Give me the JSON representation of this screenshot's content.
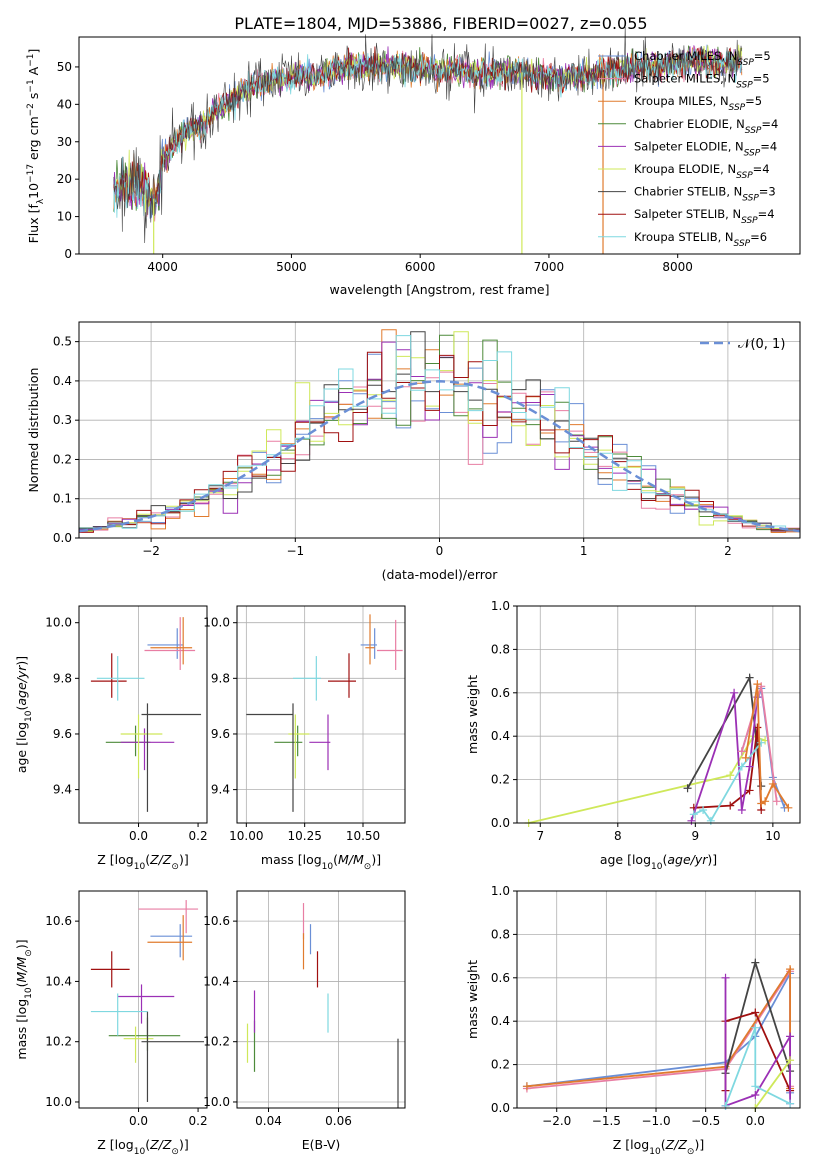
{
  "title": "PLATE=1804, MJD=53886, FIBERID=0027, z=0.055",
  "colors": {
    "chabrier_miles": "#6a8fd6",
    "salpeter_miles": "#e87ea3",
    "kroupa_miles": "#e07b2e",
    "chabrier_elodie": "#4d8a3a",
    "salpeter_elodie": "#9b30b5",
    "kroupa_elodie": "#cfe85a",
    "chabrier_stelib": "#444444",
    "salpeter_stelib": "#a01010",
    "kroupa_stelib": "#7fd8e0",
    "normal_curve": "#6a8fd6"
  },
  "chart_data": [
    {
      "id": "spectrum",
      "type": "line",
      "xlabel": "wavelength [Angstrom, rest frame]",
      "ylabel": "Flux [f_λ10^-17 erg cm^-2 s^-1 A^-1]",
      "xlim": [
        3350,
        8950
      ],
      "ylim": [
        0,
        58
      ],
      "xticks": [
        "4000",
        "5000",
        "6000",
        "7000",
        "8000"
      ],
      "yticks": [
        "0",
        "10",
        "20",
        "30",
        "40",
        "50"
      ],
      "legend_position": "top-right",
      "legend": [
        "Chabrier MILES, N_SSP=5",
        "Salpeter MILES, N_SSP=5",
        "Kroupa MILES, N_SSP=5",
        "Chabrier ELODIE, N_SSP=4",
        "Salpeter ELODIE, N_SSP=4",
        "Kroupa ELODIE, N_SSP=4",
        "Chabrier STELIB, N_SSP=3",
        "Salpeter STELIB, N_SSP=4",
        "Kroupa STELIB, N_SSP=6"
      ],
      "continuum": {
        "x": [
          3600,
          3700,
          3800,
          3900,
          3950,
          4000,
          4100,
          4200,
          4300,
          4400,
          4500,
          4600,
          4700,
          4800,
          4900,
          5000,
          5100,
          5200,
          5300,
          5500,
          5700,
          5900,
          6100,
          6300,
          6500,
          6700,
          6900,
          7100,
          7300,
          7500,
          7700,
          7900,
          8100,
          8300,
          8500
        ],
        "y": [
          17,
          19,
          18,
          16,
          14,
          25,
          30,
          33,
          34,
          38,
          40,
          43,
          45,
          46,
          47,
          47,
          48,
          47,
          49,
          50,
          50,
          50,
          49,
          49,
          48,
          49,
          48,
          47,
          48,
          49,
          50,
          50,
          52,
          51,
          51
        ]
      },
      "dips": [
        {
          "x": 3930,
          "y": 0,
          "series": "Kroupa ELODIE"
        },
        {
          "x": 6790,
          "y": 0,
          "series": "Kroupa ELODIE"
        },
        {
          "x": 7420,
          "y": 0,
          "series": "Kroupa MILES"
        }
      ]
    },
    {
      "id": "residuals",
      "type": "histogram",
      "xlabel": "(data-model)/error",
      "ylabel": "Normed distribution",
      "xlim": [
        -2.5,
        2.5
      ],
      "ylim": [
        0,
        0.55
      ],
      "xticks": [
        "−2",
        "−1",
        "0",
        "1",
        "2"
      ],
      "yticks": [
        "0.0",
        "0.1",
        "0.2",
        "0.3",
        "0.4",
        "0.5"
      ],
      "grid": true,
      "legend_position": "top-right",
      "legend": [
        "𝒩(0, 1)"
      ],
      "bin_width": 0.1,
      "normal_curve": {
        "mu": 0,
        "sigma": 1
      }
    },
    {
      "id": "age_vs_Z",
      "type": "errorbar",
      "xlabel": "Z [log10(Z/Z⊙)]",
      "ylabel": "age  [log10(age/yr)]",
      "xlim": [
        -0.2,
        0.23
      ],
      "ylim": [
        9.28,
        10.06
      ],
      "xticks": [
        "0.0",
        "0.2"
      ],
      "yticks": [
        "9.4",
        "9.6",
        "9.8",
        "10.0"
      ],
      "points": [
        {
          "series": "Chabrier MILES",
          "x": 0.13,
          "y": 9.92,
          "xerr": [
            0.1,
            0.02
          ],
          "yerr": [
            0.05,
            0.06
          ]
        },
        {
          "series": "Salpeter MILES",
          "x": 0.14,
          "y": 9.9,
          "xerr": [
            0.12,
            0.05
          ],
          "yerr": [
            0.07,
            0.12
          ]
        },
        {
          "series": "Kroupa MILES",
          "x": 0.15,
          "y": 9.91,
          "xerr": [
            0.11,
            0.03
          ],
          "yerr": [
            0.06,
            0.11
          ]
        },
        {
          "series": "Chabrier ELODIE",
          "x": -0.01,
          "y": 9.57,
          "xerr": [
            0.1,
            0.05
          ],
          "yerr": [
            0.05,
            0.06
          ]
        },
        {
          "series": "Salpeter ELODIE",
          "x": 0.02,
          "y": 9.57,
          "xerr": [
            0.08,
            0.1
          ],
          "yerr": [
            0.1,
            0.05
          ]
        },
        {
          "series": "Kroupa ELODIE",
          "x": 0.0,
          "y": 9.6,
          "xerr": [
            0.06,
            0.08
          ],
          "yerr": [
            0.16,
            0.07
          ]
        },
        {
          "series": "Chabrier STELIB",
          "x": 0.03,
          "y": 9.67,
          "xerr": [
            0.02,
            0.18
          ],
          "yerr": [
            0.35,
            0.04
          ]
        },
        {
          "series": "Salpeter STELIB",
          "x": -0.09,
          "y": 9.79,
          "xerr": [
            0.07,
            0.05
          ],
          "yerr": [
            0.06,
            0.1
          ]
        },
        {
          "series": "Kroupa STELIB",
          "x": -0.07,
          "y": 9.8,
          "xerr": [
            0.07,
            0.09
          ],
          "yerr": [
            0.08,
            0.08
          ]
        }
      ]
    },
    {
      "id": "age_vs_mass",
      "type": "errorbar",
      "xlabel": "mass [log10(M/M⊙)]",
      "ylim": [
        9.28,
        10.06
      ],
      "xlim": [
        9.96,
        10.68
      ],
      "xticks": [
        "10.00",
        "10.25",
        "10.50"
      ],
      "yticks": [
        "9.4",
        "9.6",
        "9.8",
        "10.0"
      ],
      "points": [
        {
          "series": "Chabrier MILES",
          "x": 10.55,
          "y": 9.92,
          "xerr": [
            0.06,
            0.01
          ],
          "yerr": [
            0.05,
            0.06
          ]
        },
        {
          "series": "Salpeter MILES",
          "x": 10.64,
          "y": 9.9,
          "xerr": [
            0.08,
            0.03
          ],
          "yerr": [
            0.07,
            0.11
          ]
        },
        {
          "series": "Kroupa MILES",
          "x": 10.53,
          "y": 9.91,
          "xerr": [
            0.02,
            0.02
          ],
          "yerr": [
            0.06,
            0.12
          ]
        },
        {
          "series": "Chabrier ELODIE",
          "x": 10.22,
          "y": 9.57,
          "xerr": [
            0.1,
            0.02
          ],
          "yerr": [
            0.05,
            0.06
          ]
        },
        {
          "series": "Salpeter ELODIE",
          "x": 10.35,
          "y": 9.57,
          "xerr": [
            0.08,
            0.01
          ],
          "yerr": [
            0.1,
            0.1
          ]
        },
        {
          "series": "Kroupa ELODIE",
          "x": 10.21,
          "y": 9.6,
          "xerr": [
            0.03,
            0.06
          ],
          "yerr": [
            0.16,
            0.07
          ]
        },
        {
          "series": "Chabrier STELIB",
          "x": 10.2,
          "y": 9.67,
          "xerr": [
            0.2,
            0.0
          ],
          "yerr": [
            0.35,
            0.04
          ]
        },
        {
          "series": "Salpeter STELIB",
          "x": 10.44,
          "y": 9.79,
          "xerr": [
            0.09,
            0.03
          ],
          "yerr": [
            0.06,
            0.1
          ]
        },
        {
          "series": "Kroupa STELIB",
          "x": 10.3,
          "y": 9.8,
          "xerr": [
            0.1,
            0.02
          ],
          "yerr": [
            0.08,
            0.08
          ]
        }
      ]
    },
    {
      "id": "weight_vs_age",
      "type": "line",
      "xlabel": "age  [log10(age/yr)]",
      "ylabel": "mass weight",
      "xlim": [
        6.7,
        10.35
      ],
      "ylim": [
        0,
        1
      ],
      "xticks": [
        "7",
        "8",
        "9",
        "10"
      ],
      "yticks": [
        "0.0",
        "0.2",
        "0.4",
        "0.6",
        "0.8",
        "1.0"
      ],
      "grid": true,
      "series": [
        {
          "series": "Kroupa ELODIE",
          "x": [
            6.85,
            9.45,
            9.75,
            9.9
          ],
          "y": [
            0.0,
            0.22,
            0.4,
            0.38
          ]
        },
        {
          "series": "Chabrier STELIB",
          "x": [
            8.9,
            9.7,
            9.85
          ],
          "y": [
            0.16,
            0.67,
            0.17
          ]
        },
        {
          "series": "Salpeter STELIB",
          "x": [
            8.98,
            9.45,
            9.7,
            9.8,
            9.85
          ],
          "y": [
            0.07,
            0.08,
            0.15,
            0.44,
            0.06
          ]
        },
        {
          "series": "Salpeter ELODIE",
          "x": [
            8.95,
            9.5,
            9.6,
            9.7,
            9.8
          ],
          "y": [
            0.01,
            0.6,
            0.06,
            0.26,
            0.58
          ]
        },
        {
          "series": "Kroupa STELIB",
          "x": [
            8.98,
            9.1,
            9.2,
            9.6,
            9.85
          ],
          "y": [
            0.04,
            0.06,
            0.01,
            0.26,
            0.37
          ]
        },
        {
          "series": "Chabrier MILES",
          "x": [
            9.6,
            9.85,
            10.0,
            10.15
          ],
          "y": [
            0.33,
            0.62,
            0.21,
            0.07
          ]
        },
        {
          "series": "Salpeter MILES",
          "x": [
            9.6,
            9.85,
            10.05
          ],
          "y": [
            0.33,
            0.63,
            0.1
          ]
        },
        {
          "series": "Kroupa MILES",
          "x": [
            9.65,
            9.8,
            9.85,
            9.9,
            10.0,
            10.2
          ],
          "y": [
            0.3,
            0.64,
            0.09,
            0.1,
            0.18,
            0.07
          ]
        }
      ]
    },
    {
      "id": "mass_vs_Z",
      "type": "errorbar",
      "xlabel": "Z [log10(Z/Z⊙)]",
      "ylabel": "mass [log10(M/M⊙)]",
      "xlim": [
        -0.2,
        0.23
      ],
      "ylim": [
        9.98,
        10.7
      ],
      "xticks": [
        "0.0",
        "0.2"
      ],
      "yticks": [
        "10.0",
        "10.2",
        "10.4",
        "10.6"
      ],
      "points": [
        {
          "series": "Chabrier MILES",
          "x": 0.14,
          "y": 10.55,
          "xerr": [
            0.1,
            0.04
          ],
          "yerr": [
            0.07,
            0.04
          ]
        },
        {
          "series": "Salpeter MILES",
          "x": 0.16,
          "y": 10.64,
          "xerr": [
            0.16,
            0.04
          ],
          "yerr": [
            0.08,
            0.03
          ]
        },
        {
          "series": "Kroupa MILES",
          "x": 0.15,
          "y": 10.53,
          "xerr": [
            0.12,
            0.03
          ],
          "yerr": [
            0.06,
            0.09
          ]
        },
        {
          "series": "Chabrier ELODIE",
          "x": 0.03,
          "y": 10.22,
          "xerr": [
            0.13,
            0.11
          ],
          "yerr": [
            0.05,
            0.06
          ]
        },
        {
          "series": "Salpeter ELODIE",
          "x": 0.01,
          "y": 10.35,
          "xerr": [
            0.08,
            0.11
          ],
          "yerr": [
            0.09,
            0.04
          ]
        },
        {
          "series": "Kroupa ELODIE",
          "x": -0.01,
          "y": 10.21,
          "xerr": [
            0.04,
            0.06
          ],
          "yerr": [
            0.08,
            0.04
          ]
        },
        {
          "series": "Chabrier STELIB",
          "x": 0.03,
          "y": 10.2,
          "xerr": [
            0.02,
            0.19
          ],
          "yerr": [
            0.2,
            0.1
          ]
        },
        {
          "series": "Salpeter STELIB",
          "x": -0.09,
          "y": 10.44,
          "xerr": [
            0.07,
            0.06
          ],
          "yerr": [
            0.06,
            0.06
          ]
        },
        {
          "series": "Kroupa STELIB",
          "x": -0.07,
          "y": 10.3,
          "xerr": [
            0.09,
            0.1
          ],
          "yerr": [
            0.08,
            0.06
          ]
        }
      ]
    },
    {
      "id": "mass_vs_EBV",
      "type": "errorbar",
      "xlabel": "E(B-V)",
      "xlim": [
        0.031,
        0.079
      ],
      "ylim": [
        9.98,
        10.7
      ],
      "xticks": [
        "0.04",
        "0.06"
      ],
      "yticks": [
        "10.0",
        "10.2",
        "10.4",
        "10.6"
      ],
      "points": [
        {
          "series": "Chabrier MILES",
          "x": 0.052,
          "y": 10.55,
          "yerr": [
            0.06,
            0.04
          ]
        },
        {
          "series": "Salpeter MILES",
          "x": 0.05,
          "y": 10.6,
          "yerr": [
            0.06,
            0.06
          ]
        },
        {
          "series": "Kroupa MILES",
          "x": 0.05,
          "y": 10.5,
          "yerr": [
            0.06,
            0.06
          ]
        },
        {
          "series": "Chabrier ELODIE",
          "x": 0.036,
          "y": 10.2,
          "yerr": [
            0.1,
            0.07
          ]
        },
        {
          "series": "Salpeter ELODIE",
          "x": 0.036,
          "y": 10.3,
          "yerr": [
            0.07,
            0.07
          ]
        },
        {
          "series": "Kroupa ELODIE",
          "x": 0.034,
          "y": 10.2,
          "yerr": [
            0.07,
            0.06
          ]
        },
        {
          "series": "Chabrier STELIB",
          "x": 0.077,
          "y": 10.1,
          "yerr": [
            0.12,
            0.11
          ]
        },
        {
          "series": "Salpeter STELIB",
          "x": 0.054,
          "y": 10.44,
          "yerr": [
            0.06,
            0.06
          ]
        },
        {
          "series": "Kroupa STELIB",
          "x": 0.057,
          "y": 10.3,
          "yerr": [
            0.07,
            0.06
          ]
        }
      ]
    },
    {
      "id": "weight_vs_Z",
      "type": "line",
      "xlabel": "Z [log10(Z/Z⊙)]",
      "ylabel": "mass weight",
      "xlim": [
        -2.4,
        0.45
      ],
      "ylim": [
        0,
        1
      ],
      "xticks": [
        "−2.0",
        "−1.5",
        "−1.0",
        "−0.5",
        "0.0"
      ],
      "yticks": [
        "0.0",
        "0.2",
        "0.4",
        "0.6",
        "0.8",
        "1.0"
      ],
      "grid": true,
      "series": [
        {
          "series": "Chabrier MILES",
          "x": [
            -2.3,
            -0.3,
            0.0,
            0.35,
            0.35
          ],
          "y": [
            0.1,
            0.21,
            0.33,
            0.62,
            0.07
          ]
        },
        {
          "series": "Salpeter MILES",
          "x": [
            -2.3,
            -0.3,
            0.35,
            0.35
          ],
          "y": [
            0.09,
            0.18,
            0.63,
            0.1
          ]
        },
        {
          "series": "Kroupa MILES",
          "x": [
            -2.3,
            -0.3,
            0.35,
            0.35
          ],
          "y": [
            0.1,
            0.19,
            0.64,
            0.09
          ]
        },
        {
          "series": "Chabrier STELIB",
          "x": [
            -0.3,
            0.0,
            0.35
          ],
          "y": [
            0.16,
            0.67,
            0.17
          ]
        },
        {
          "series": "Salpeter STELIB",
          "x": [
            -0.3,
            -0.3,
            0.0,
            0.35
          ],
          "y": [
            0.08,
            0.4,
            0.44,
            0.08
          ]
        },
        {
          "series": "Salpeter ELODIE",
          "x": [
            -0.3,
            -0.3,
            0.0,
            0.35,
            0.35
          ],
          "y": [
            0.6,
            0.01,
            0.06,
            0.33,
            0.02
          ]
        },
        {
          "series": "Kroupa STELIB",
          "x": [
            -0.3,
            0.0,
            0.0,
            0.35
          ],
          "y": [
            0.01,
            0.37,
            0.1,
            0.02
          ]
        },
        {
          "series": "Kroupa ELODIE",
          "x": [
            0.0,
            0.35
          ],
          "y": [
            0.0,
            0.22
          ]
        }
      ]
    }
  ]
}
